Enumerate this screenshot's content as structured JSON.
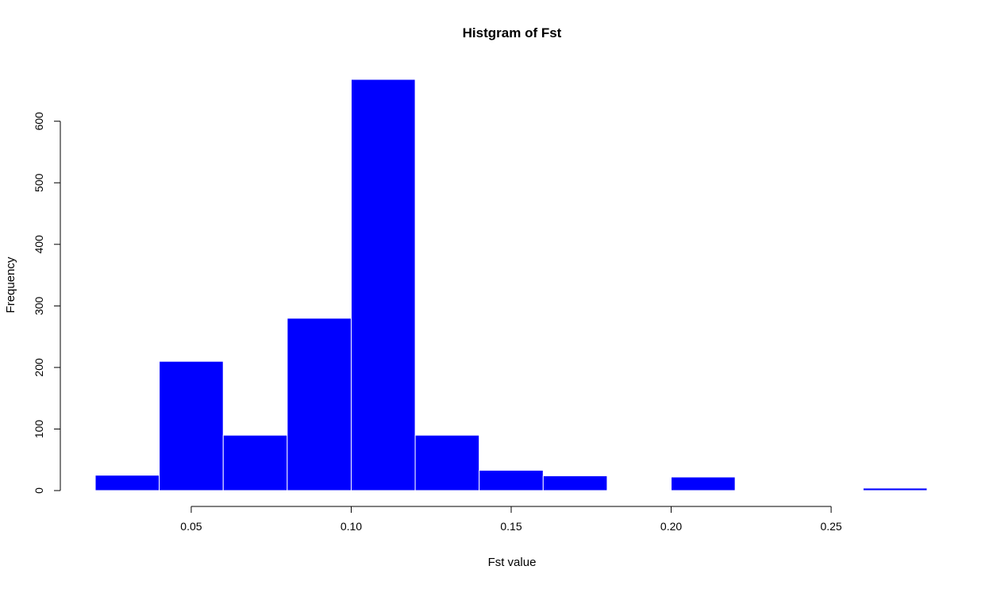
{
  "chart_data": {
    "type": "bar",
    "title": "Histgram of Fst",
    "xlabel": "Fst value",
    "ylabel": "Frequency",
    "bin_edges": [
      0.02,
      0.04,
      0.06,
      0.08,
      0.1,
      0.12,
      0.14,
      0.16,
      0.18,
      0.2,
      0.22,
      0.24,
      0.26,
      0.28
    ],
    "values": [
      25,
      210,
      90,
      280,
      668,
      90,
      33,
      24,
      0,
      22,
      0,
      0,
      4
    ],
    "xlim": [
      0.02,
      0.28
    ],
    "ylim": [
      0,
      668
    ],
    "x_ticks": [
      0.05,
      0.1,
      0.15,
      0.2,
      0.25
    ],
    "x_tick_labels": [
      "0.05",
      "0.10",
      "0.15",
      "0.20",
      "0.25"
    ],
    "y_ticks": [
      0,
      100,
      200,
      300,
      400,
      500,
      600
    ],
    "y_tick_labels": [
      "0",
      "100",
      "200",
      "300",
      "400",
      "500",
      "600"
    ],
    "bar_color": "#0000ff",
    "bar_border_color": "#ffffff",
    "grid": false,
    "legend": "none"
  }
}
